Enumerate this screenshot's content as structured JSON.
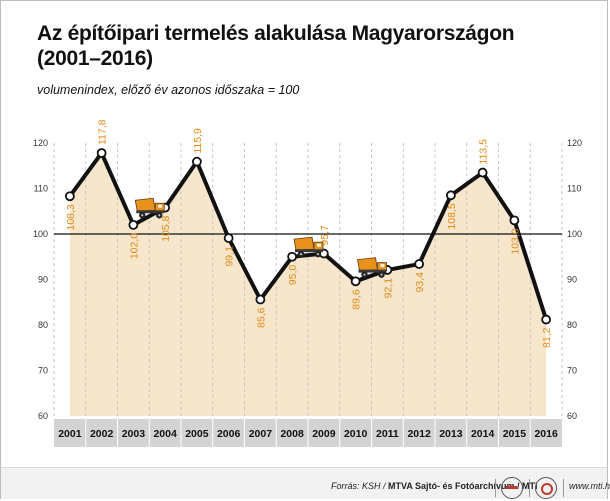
{
  "header": {
    "title_line1": "Az építőipari termelés alakulása Magyarországon",
    "title_line2": "(2001–2016)",
    "subtitle": "volumenindex, előző év azonos időszaka = 100"
  },
  "chart_data": {
    "type": "line",
    "title": "Az építőipari termelés alakulása Magyarországon (2001–2016)",
    "subtitle": "volumenindex, előző év azonos időszaka = 100",
    "categories": [
      "2001",
      "2002",
      "2003",
      "2004",
      "2005",
      "2006",
      "2007",
      "2008",
      "2009",
      "2010",
      "2011",
      "2012",
      "2013",
      "2014",
      "2015",
      "2016"
    ],
    "series": [
      {
        "values": [
          108.3,
          117.8,
          102.0,
          105.8,
          115.9,
          99.1,
          85.6,
          95.0,
          95.7,
          89.6,
          92.1,
          93.4,
          108.5,
          113.5,
          103.0,
          81.2
        ],
        "labels": [
          "108,3",
          "117,8",
          "102,0",
          "105,8",
          "115,9",
          "99,1",
          "85,6",
          "95,0",
          "95,7",
          "89,6",
          "92,1",
          "93,4",
          "108,5",
          "113,5",
          "103,0",
          "81,2"
        ]
      }
    ],
    "ylim": [
      60,
      120
    ],
    "yticks": [
      "60",
      "70",
      "80",
      "90",
      "100",
      "110",
      "120"
    ],
    "reference_line": 100,
    "grid": "vertical",
    "decorations": [
      "dump-truck-icon",
      "dump-truck-icon",
      "dump-truck-icon"
    ],
    "colors": {
      "line": "#111111",
      "area": "#f6e6cc",
      "labels": "#e38a17",
      "truck": "#e8921c",
      "axis_band": "#d3d3d3"
    }
  },
  "footer": {
    "source_prefix": "Forrás: KSH /",
    "source_agency": "MTVA Sajtó- és Fotóarchívum / MTI",
    "url": "www.mti.hu"
  }
}
